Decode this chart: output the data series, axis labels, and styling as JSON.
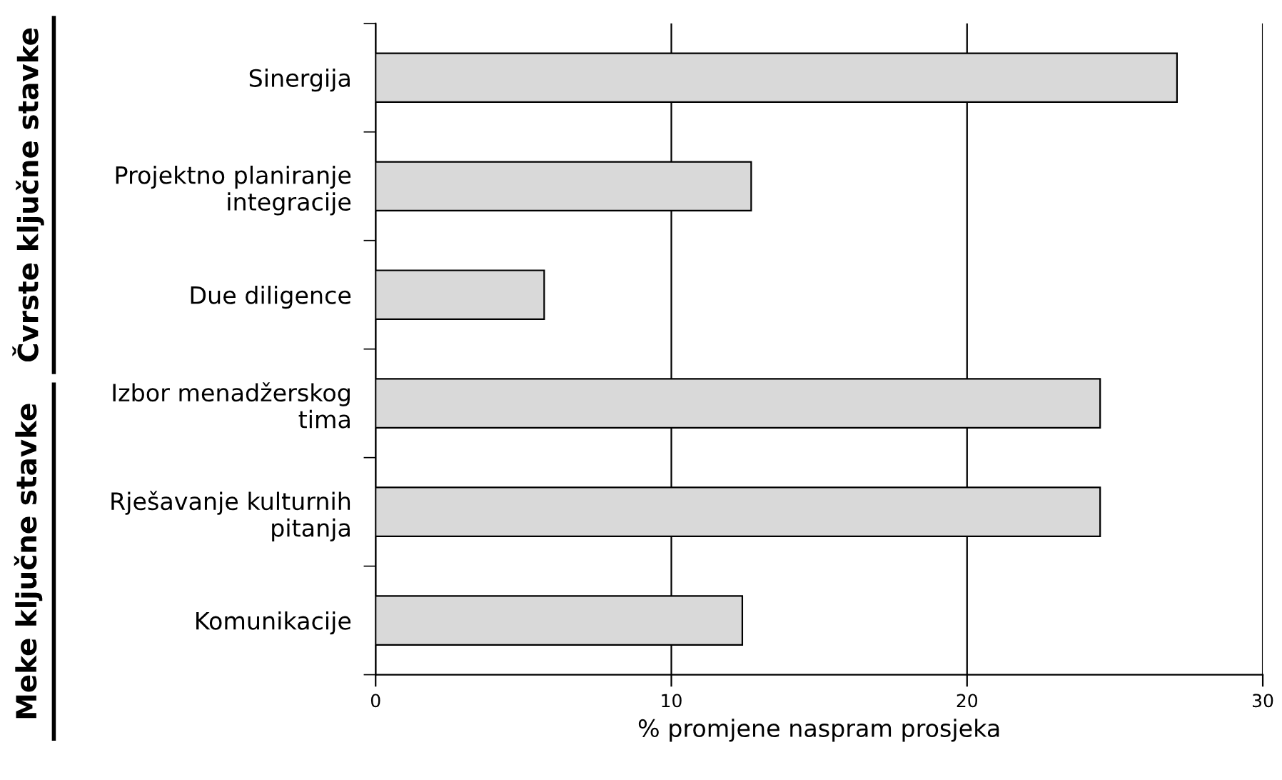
{
  "chart_data": {
    "type": "bar",
    "orientation": "horizontal",
    "xlabel": "% promjene naspram prosjeka",
    "categories": [
      "Sinergija",
      "Projektno planiranje\nintegracije",
      "Due diligence",
      "Izbor menadžerskog\ntima",
      "Rješavanje kulturnih\npitanja",
      "Komunikacije"
    ],
    "values": [
      27.1,
      12.7,
      5.7,
      24.5,
      24.5,
      12.4
    ],
    "color": "#d9d9d9",
    "xlim": [
      0,
      30
    ],
    "xticks": [
      0,
      10,
      20,
      30
    ],
    "grid": "x",
    "annotations": [
      "Čvrste ključne stavke",
      "Meke ključne stavke"
    ]
  }
}
